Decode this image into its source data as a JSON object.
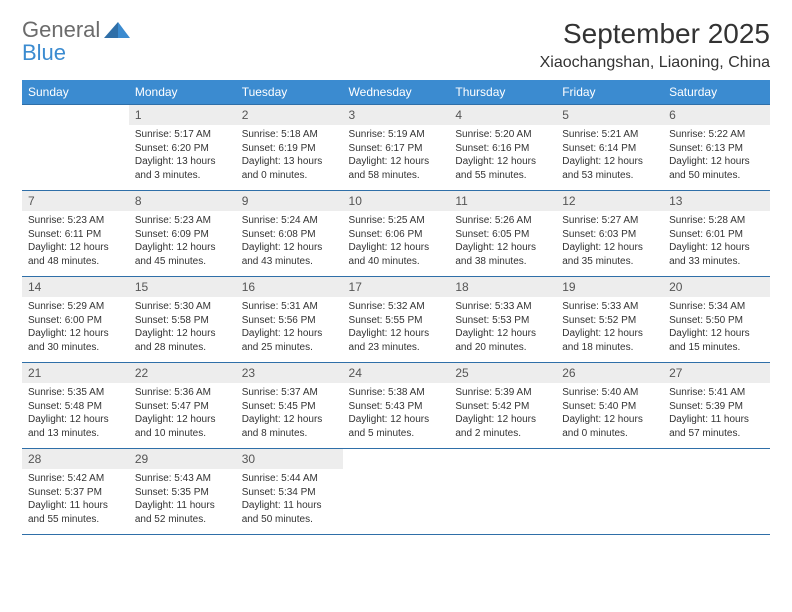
{
  "logo": {
    "word1": "General",
    "word2": "Blue"
  },
  "colors": {
    "header_bg": "#3b8bd0",
    "header_text": "#ffffff",
    "daynum_bg": "#ededed",
    "row_border": "#2f6fa8",
    "logo_gray": "#6b6b6b",
    "logo_blue": "#3b8bd0",
    "page_bg": "#ffffff",
    "body_text": "#333333"
  },
  "title": "September 2025",
  "location": "Xiaochangshan, Liaoning, China",
  "weekdays": [
    "Sunday",
    "Monday",
    "Tuesday",
    "Wednesday",
    "Thursday",
    "Friday",
    "Saturday"
  ],
  "fonts": {
    "title_pt": 28,
    "location_pt": 16,
    "weekday_pt": 12,
    "daynum_pt": 12,
    "body_pt": 10
  },
  "weeks": [
    [
      null,
      {
        "n": "1",
        "sr": "Sunrise: 5:17 AM",
        "ss": "Sunset: 6:20 PM",
        "dl": "Daylight: 13 hours and 3 minutes."
      },
      {
        "n": "2",
        "sr": "Sunrise: 5:18 AM",
        "ss": "Sunset: 6:19 PM",
        "dl": "Daylight: 13 hours and 0 minutes."
      },
      {
        "n": "3",
        "sr": "Sunrise: 5:19 AM",
        "ss": "Sunset: 6:17 PM",
        "dl": "Daylight: 12 hours and 58 minutes."
      },
      {
        "n": "4",
        "sr": "Sunrise: 5:20 AM",
        "ss": "Sunset: 6:16 PM",
        "dl": "Daylight: 12 hours and 55 minutes."
      },
      {
        "n": "5",
        "sr": "Sunrise: 5:21 AM",
        "ss": "Sunset: 6:14 PM",
        "dl": "Daylight: 12 hours and 53 minutes."
      },
      {
        "n": "6",
        "sr": "Sunrise: 5:22 AM",
        "ss": "Sunset: 6:13 PM",
        "dl": "Daylight: 12 hours and 50 minutes."
      }
    ],
    [
      {
        "n": "7",
        "sr": "Sunrise: 5:23 AM",
        "ss": "Sunset: 6:11 PM",
        "dl": "Daylight: 12 hours and 48 minutes."
      },
      {
        "n": "8",
        "sr": "Sunrise: 5:23 AM",
        "ss": "Sunset: 6:09 PM",
        "dl": "Daylight: 12 hours and 45 minutes."
      },
      {
        "n": "9",
        "sr": "Sunrise: 5:24 AM",
        "ss": "Sunset: 6:08 PM",
        "dl": "Daylight: 12 hours and 43 minutes."
      },
      {
        "n": "10",
        "sr": "Sunrise: 5:25 AM",
        "ss": "Sunset: 6:06 PM",
        "dl": "Daylight: 12 hours and 40 minutes."
      },
      {
        "n": "11",
        "sr": "Sunrise: 5:26 AM",
        "ss": "Sunset: 6:05 PM",
        "dl": "Daylight: 12 hours and 38 minutes."
      },
      {
        "n": "12",
        "sr": "Sunrise: 5:27 AM",
        "ss": "Sunset: 6:03 PM",
        "dl": "Daylight: 12 hours and 35 minutes."
      },
      {
        "n": "13",
        "sr": "Sunrise: 5:28 AM",
        "ss": "Sunset: 6:01 PM",
        "dl": "Daylight: 12 hours and 33 minutes."
      }
    ],
    [
      {
        "n": "14",
        "sr": "Sunrise: 5:29 AM",
        "ss": "Sunset: 6:00 PM",
        "dl": "Daylight: 12 hours and 30 minutes."
      },
      {
        "n": "15",
        "sr": "Sunrise: 5:30 AM",
        "ss": "Sunset: 5:58 PM",
        "dl": "Daylight: 12 hours and 28 minutes."
      },
      {
        "n": "16",
        "sr": "Sunrise: 5:31 AM",
        "ss": "Sunset: 5:56 PM",
        "dl": "Daylight: 12 hours and 25 minutes."
      },
      {
        "n": "17",
        "sr": "Sunrise: 5:32 AM",
        "ss": "Sunset: 5:55 PM",
        "dl": "Daylight: 12 hours and 23 minutes."
      },
      {
        "n": "18",
        "sr": "Sunrise: 5:33 AM",
        "ss": "Sunset: 5:53 PM",
        "dl": "Daylight: 12 hours and 20 minutes."
      },
      {
        "n": "19",
        "sr": "Sunrise: 5:33 AM",
        "ss": "Sunset: 5:52 PM",
        "dl": "Daylight: 12 hours and 18 minutes."
      },
      {
        "n": "20",
        "sr": "Sunrise: 5:34 AM",
        "ss": "Sunset: 5:50 PM",
        "dl": "Daylight: 12 hours and 15 minutes."
      }
    ],
    [
      {
        "n": "21",
        "sr": "Sunrise: 5:35 AM",
        "ss": "Sunset: 5:48 PM",
        "dl": "Daylight: 12 hours and 13 minutes."
      },
      {
        "n": "22",
        "sr": "Sunrise: 5:36 AM",
        "ss": "Sunset: 5:47 PM",
        "dl": "Daylight: 12 hours and 10 minutes."
      },
      {
        "n": "23",
        "sr": "Sunrise: 5:37 AM",
        "ss": "Sunset: 5:45 PM",
        "dl": "Daylight: 12 hours and 8 minutes."
      },
      {
        "n": "24",
        "sr": "Sunrise: 5:38 AM",
        "ss": "Sunset: 5:43 PM",
        "dl": "Daylight: 12 hours and 5 minutes."
      },
      {
        "n": "25",
        "sr": "Sunrise: 5:39 AM",
        "ss": "Sunset: 5:42 PM",
        "dl": "Daylight: 12 hours and 2 minutes."
      },
      {
        "n": "26",
        "sr": "Sunrise: 5:40 AM",
        "ss": "Sunset: 5:40 PM",
        "dl": "Daylight: 12 hours and 0 minutes."
      },
      {
        "n": "27",
        "sr": "Sunrise: 5:41 AM",
        "ss": "Sunset: 5:39 PM",
        "dl": "Daylight: 11 hours and 57 minutes."
      }
    ],
    [
      {
        "n": "28",
        "sr": "Sunrise: 5:42 AM",
        "ss": "Sunset: 5:37 PM",
        "dl": "Daylight: 11 hours and 55 minutes."
      },
      {
        "n": "29",
        "sr": "Sunrise: 5:43 AM",
        "ss": "Sunset: 5:35 PM",
        "dl": "Daylight: 11 hours and 52 minutes."
      },
      {
        "n": "30",
        "sr": "Sunrise: 5:44 AM",
        "ss": "Sunset: 5:34 PM",
        "dl": "Daylight: 11 hours and 50 minutes."
      },
      null,
      null,
      null,
      null
    ]
  ]
}
